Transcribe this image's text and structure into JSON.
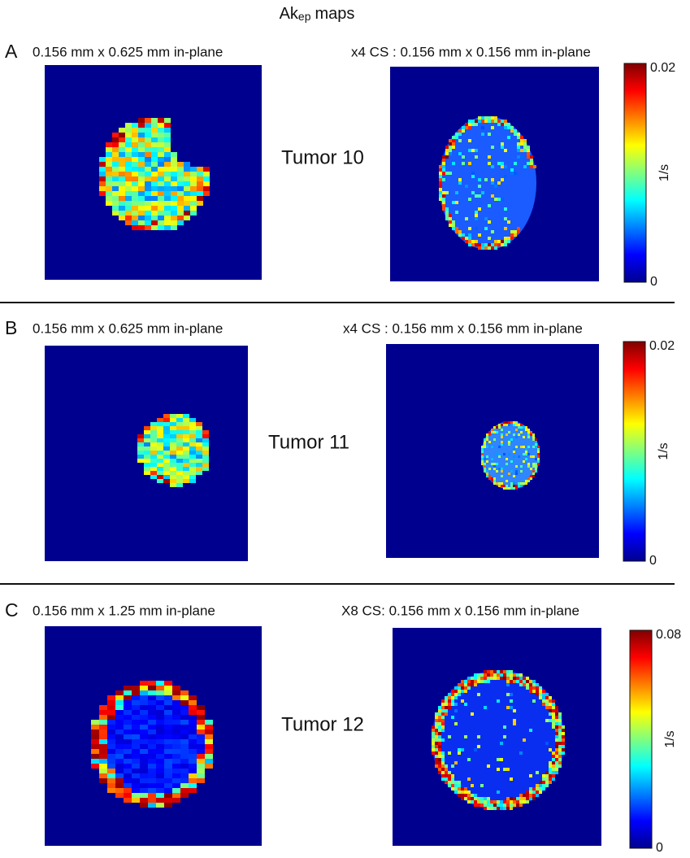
{
  "title": {
    "main": "Ak",
    "subscript": "ep",
    "suffix": "maps"
  },
  "panels": [
    {
      "label": "A",
      "left_caption": "0.156 mm x 0.625 mm in-plane",
      "right_caption": "x4 CS : 0.156 mm x 0.156 mm in-plane",
      "tumor": "Tumor 10",
      "colorbar": {
        "max": 0.02,
        "min": 0,
        "unit": "1/s"
      }
    },
    {
      "label": "B",
      "left_caption": "0.156 mm x 0.625 mm in-plane",
      "right_caption": "x4 CS : 0.156 mm x 0.156 mm in-plane",
      "tumor": "Tumor 11",
      "colorbar": {
        "max": 0.02,
        "min": 0,
        "unit": "1/s"
      }
    },
    {
      "label": "C",
      "left_caption": "0.156 mm x 1.25 mm in-plane",
      "right_caption": "X8 CS: 0.156 mm x 0.156 mm in-plane",
      "tumor": "Tumor 12",
      "colorbar": {
        "max": 0.08,
        "min": 0,
        "unit": "1/s"
      }
    }
  ]
}
